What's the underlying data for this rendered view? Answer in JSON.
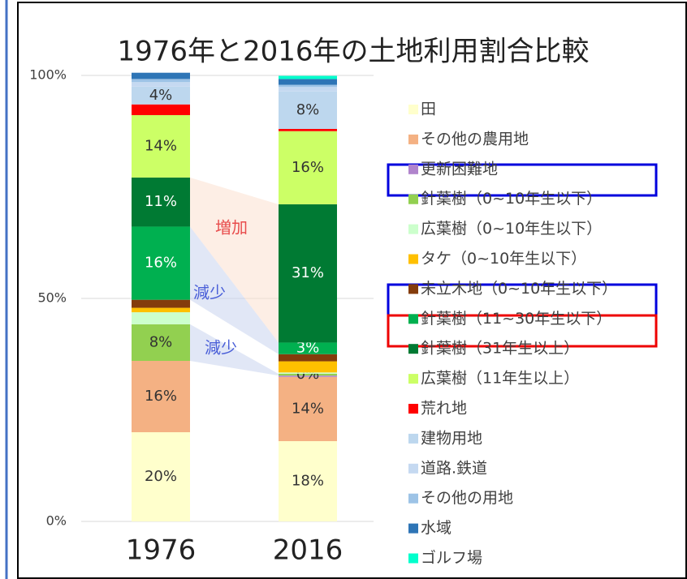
{
  "chart_data": {
    "type": "stacked-bar",
    "title": "1976年と2016年の土地利用割合比較",
    "categories": [
      "1976",
      "2016"
    ],
    "ylim": [
      0,
      100
    ],
    "yticks": [
      {
        "value": 0,
        "label": "0%"
      },
      {
        "value": 50,
        "label": "50%"
      },
      {
        "value": 100,
        "label": "100%"
      }
    ],
    "grid": true,
    "legend": "right",
    "annotations": [
      "増加",
      "減少",
      "減少"
    ],
    "series": [
      {
        "name": "田",
        "color": "#FFFFCC",
        "values": [
          20,
          18
        ],
        "value_labels": [
          "20%",
          "18%"
        ]
      },
      {
        "name": "その他の農用地",
        "color": "#F4B183",
        "values": [
          16,
          14.4
        ],
        "value_labels": [
          "16%",
          "14%"
        ]
      },
      {
        "name": "更新困難地",
        "color": "#B084CC",
        "values": [
          0,
          0.3
        ],
        "value_labels": [
          null,
          null
        ]
      },
      {
        "name": "針葉樹（0~10年生以下）",
        "color": "#92D050",
        "values": [
          8.2,
          0.4
        ],
        "value_labels": [
          "8%",
          "0%"
        ]
      },
      {
        "name": "広葉樹（0~10年生以下）",
        "color": "#CCFFCC",
        "values": [
          2.7,
          0.3
        ],
        "value_labels": [
          null,
          null
        ]
      },
      {
        "name": "タケ（0~10年生以下）",
        "color": "#FFC000",
        "values": [
          1,
          2.5
        ],
        "value_labels": [
          null,
          null
        ]
      },
      {
        "name": "未立木地（0~10年生以下）",
        "color": "#843C0C",
        "values": [
          1.8,
          1.6
        ],
        "value_labels": [
          null,
          null
        ]
      },
      {
        "name": "針葉樹（11~30年生以下）",
        "color": "#00B050",
        "values": [
          16.4,
          2.6
        ],
        "value_labels": [
          "16%",
          "3%"
        ]
      },
      {
        "name": "針葉樹（31年生以上）",
        "color": "#007A33",
        "values": [
          11,
          31
        ],
        "value_labels": [
          "11%",
          "31%"
        ]
      },
      {
        "name": "広葉樹（11年生以上）",
        "color": "#CCFF66",
        "values": [
          14,
          16.4
        ],
        "value_labels": [
          "14%",
          "16%"
        ]
      },
      {
        "name": "荒れ地",
        "color": "#FF0000",
        "values": [
          2.4,
          0.5
        ],
        "value_labels": [
          null,
          null
        ]
      },
      {
        "name": "建物用地",
        "color": "#BDD7EE",
        "values": [
          4,
          8.4
        ],
        "value_labels": [
          "4%",
          "8%"
        ]
      },
      {
        "name": "道路.鉄道",
        "color": "#C5D9F1",
        "values": [
          1,
          1
        ],
        "value_labels": [
          null,
          null
        ]
      },
      {
        "name": "その他の用地",
        "color": "#9DC3E6",
        "values": [
          0.7,
          0.5
        ],
        "value_labels": [
          null,
          null
        ]
      },
      {
        "name": "水域",
        "color": "#2E75B6",
        "values": [
          1.4,
          1.3
        ],
        "value_labels": [
          null,
          null
        ]
      },
      {
        "name": "ゴルフ場",
        "color": "#00FFCC",
        "values": [
          0,
          0.7
        ],
        "value_labels": [
          null,
          null
        ]
      }
    ]
  }
}
